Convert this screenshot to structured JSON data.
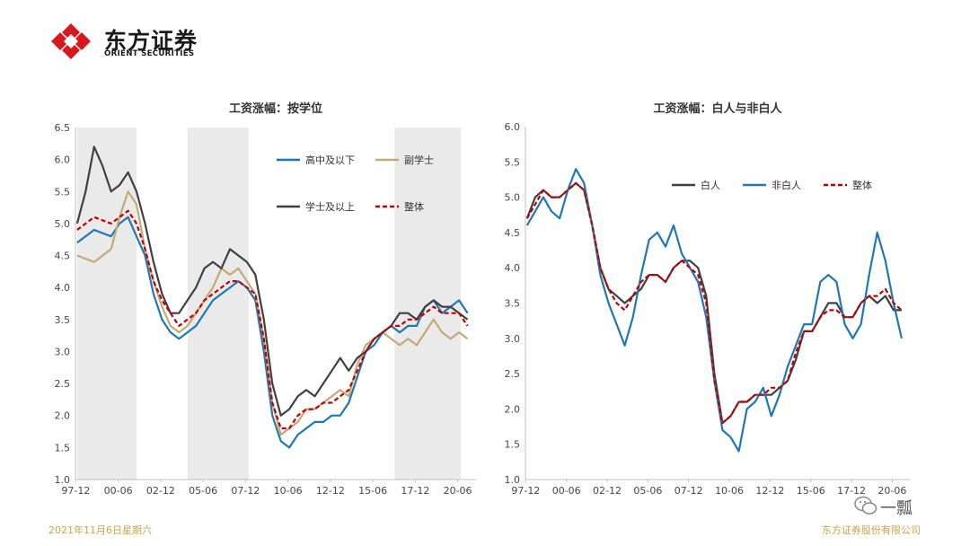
{
  "brand": {
    "name_cn": "东方证券",
    "name_en": "ORIENT SECURITIES",
    "red": "#d7191f"
  },
  "footer": {
    "date": "2021年11月6日星期六",
    "company": "东方证券股份有限公司"
  },
  "watermark": {
    "text": "一瓢"
  },
  "chart_data": [
    {
      "type": "line",
      "title": "工资涨幅：按学位",
      "ylim": [
        1.0,
        6.5
      ],
      "yticks": [
        "1.0",
        "1.5",
        "2.0",
        "2.5",
        "3.0",
        "3.5",
        "4.0",
        "4.5",
        "5.0",
        "5.5",
        "6.0",
        "6.5"
      ],
      "xlim": [
        1997.9,
        2021.5
      ],
      "xtick_labels": [
        "97-12",
        "00-06",
        "02-12",
        "05-06",
        "07-12",
        "10-06",
        "12-12",
        "15-06",
        "17-12",
        "20-06"
      ],
      "xtick_values": [
        1997.92,
        2000.42,
        2002.92,
        2005.42,
        2007.92,
        2010.42,
        2012.92,
        2015.42,
        2017.92,
        2020.42
      ],
      "grid": false,
      "legend_position": "top-right",
      "shaded_periods": [
        [
          1998.0,
          2001.5
        ],
        [
          2004.5,
          2008.1
        ],
        [
          2016.7,
          2020.6
        ]
      ],
      "series": [
        {
          "name": "高中及以下",
          "color": "#1f77b4",
          "dash": false,
          "x": [
            1998,
            1999,
            2000,
            2000.5,
            2001,
            2001.5,
            2002,
            2002.5,
            2003,
            2003.5,
            2004,
            2004.5,
            2005,
            2005.5,
            2006,
            2006.5,
            2007,
            2007.5,
            2008,
            2008.5,
            2009,
            2009.5,
            2010,
            2010.5,
            2011,
            2011.5,
            2012,
            2012.5,
            2013,
            2013.5,
            2014,
            2014.5,
            2015,
            2015.5,
            2016,
            2016.5,
            2017,
            2017.5,
            2018,
            2018.5,
            2019,
            2019.5,
            2020,
            2020.5,
            2021
          ],
          "y": [
            4.7,
            4.9,
            4.8,
            5.0,
            5.1,
            4.8,
            4.5,
            3.9,
            3.5,
            3.3,
            3.2,
            3.3,
            3.4,
            3.6,
            3.8,
            3.9,
            4.0,
            4.1,
            4.0,
            3.8,
            3.0,
            2.0,
            1.6,
            1.5,
            1.7,
            1.8,
            1.9,
            1.9,
            2.0,
            2.0,
            2.2,
            2.6,
            3.0,
            3.1,
            3.3,
            3.4,
            3.3,
            3.4,
            3.4,
            3.7,
            3.8,
            3.6,
            3.7,
            3.8,
            3.6
          ]
        },
        {
          "name": "副学士",
          "color": "#c2aa78",
          "dash": false,
          "x": [
            1998,
            1999,
            2000,
            2000.5,
            2001,
            2001.5,
            2002,
            2002.5,
            2003,
            2003.5,
            2004,
            2004.5,
            2005,
            2005.5,
            2006,
            2006.5,
            2007,
            2007.5,
            2008,
            2008.5,
            2009,
            2009.5,
            2010,
            2010.5,
            2011,
            2011.5,
            2012,
            2012.5,
            2013,
            2013.5,
            2014,
            2014.5,
            2015,
            2015.5,
            2016,
            2016.5,
            2017,
            2017.5,
            2018,
            2018.5,
            2019,
            2019.5,
            2020,
            2020.5,
            2021
          ],
          "y": [
            4.5,
            4.4,
            4.6,
            5.1,
            5.5,
            5.3,
            4.6,
            4.1,
            3.7,
            3.4,
            3.3,
            3.4,
            3.6,
            3.8,
            4.0,
            4.3,
            4.2,
            4.3,
            4.1,
            3.9,
            3.2,
            2.2,
            1.7,
            1.8,
            1.9,
            2.1,
            2.1,
            2.2,
            2.3,
            2.4,
            2.3,
            2.8,
            3.1,
            3.2,
            3.3,
            3.2,
            3.1,
            3.2,
            3.1,
            3.3,
            3.5,
            3.3,
            3.2,
            3.3,
            3.2
          ]
        },
        {
          "name": "学士及以上",
          "color": "#404040",
          "dash": false,
          "x": [
            1998,
            1998.5,
            1999,
            1999.5,
            2000,
            2000.5,
            2001,
            2001.5,
            2002,
            2002.5,
            2003,
            2003.5,
            2004,
            2004.5,
            2005,
            2005.5,
            2006,
            2006.5,
            2007,
            2007.5,
            2008,
            2008.5,
            2009,
            2009.5,
            2010,
            2010.5,
            2011,
            2011.5,
            2012,
            2012.5,
            2013,
            2013.5,
            2014,
            2014.5,
            2015,
            2015.5,
            2016,
            2016.5,
            2017,
            2017.5,
            2018,
            2018.5,
            2019,
            2019.5,
            2020,
            2020.5,
            2021
          ],
          "y": [
            5.0,
            5.5,
            6.2,
            5.9,
            5.5,
            5.6,
            5.8,
            5.5,
            5.0,
            4.4,
            3.9,
            3.6,
            3.6,
            3.8,
            4.0,
            4.3,
            4.4,
            4.3,
            4.6,
            4.5,
            4.4,
            4.2,
            3.5,
            2.5,
            2.0,
            2.1,
            2.3,
            2.4,
            2.3,
            2.5,
            2.7,
            2.9,
            2.7,
            2.9,
            3.0,
            3.2,
            3.3,
            3.4,
            3.6,
            3.6,
            3.5,
            3.7,
            3.8,
            3.7,
            3.7,
            3.6,
            3.5
          ]
        },
        {
          "name": "整体",
          "color": "#c00000",
          "dash": true,
          "x": [
            1998,
            1999,
            2000,
            2000.5,
            2001,
            2001.5,
            2002,
            2002.5,
            2003,
            2003.5,
            2004,
            2004.5,
            2005,
            2005.5,
            2006,
            2006.5,
            2007,
            2007.5,
            2008,
            2008.5,
            2009,
            2009.5,
            2010,
            2010.5,
            2011,
            2011.5,
            2012,
            2012.5,
            2013,
            2013.5,
            2014,
            2014.5,
            2015,
            2015.5,
            2016,
            2016.5,
            2017,
            2017.5,
            2018,
            2018.5,
            2019,
            2019.5,
            2020,
            2020.5,
            2021
          ],
          "y": [
            4.9,
            5.1,
            5.0,
            5.1,
            5.2,
            5.0,
            4.6,
            4.1,
            3.8,
            3.6,
            3.4,
            3.5,
            3.6,
            3.8,
            3.9,
            4.0,
            4.1,
            4.1,
            4.0,
            3.9,
            3.2,
            2.2,
            1.8,
            1.8,
            2.0,
            2.1,
            2.1,
            2.2,
            2.2,
            2.3,
            2.4,
            2.7,
            3.0,
            3.2,
            3.3,
            3.4,
            3.4,
            3.5,
            3.5,
            3.6,
            3.7,
            3.6,
            3.6,
            3.6,
            3.4
          ]
        }
      ]
    },
    {
      "type": "line",
      "title": "工资涨幅：白人与非白人",
      "ylim": [
        1.0,
        6.0
      ],
      "yticks": [
        "1.0",
        "1.5",
        "2.0",
        "2.5",
        "3.0",
        "3.5",
        "4.0",
        "4.5",
        "5.0",
        "5.5",
        "6.0"
      ],
      "xlim": [
        1997.9,
        2021.5
      ],
      "xtick_labels": [
        "97-12",
        "00-06",
        "02-12",
        "05-06",
        "07-12",
        "10-06",
        "12-12",
        "15-06",
        "17-12",
        "20-06"
      ],
      "xtick_values": [
        1997.92,
        2000.42,
        2002.92,
        2005.42,
        2007.92,
        2010.42,
        2012.92,
        2015.42,
        2017.92,
        2020.42
      ],
      "grid": false,
      "legend_position": "top-right",
      "series": [
        {
          "name": "白人",
          "color": "#404040",
          "dash": false,
          "x": [
            1998,
            1998.5,
            1999,
            1999.5,
            2000,
            2000.5,
            2001,
            2001.5,
            2002,
            2002.5,
            2003,
            2003.5,
            2004,
            2004.5,
            2005,
            2005.5,
            2006,
            2006.5,
            2007,
            2007.5,
            2008,
            2008.5,
            2009,
            2009.5,
            2010,
            2010.5,
            2011,
            2011.5,
            2012,
            2012.5,
            2013,
            2013.5,
            2014,
            2014.5,
            2015,
            2015.5,
            2016,
            2016.5,
            2017,
            2017.5,
            2018,
            2018.5,
            2019,
            2019.5,
            2020,
            2020.5,
            2021
          ],
          "y": [
            4.7,
            5.0,
            5.1,
            5.0,
            5.0,
            5.1,
            5.2,
            5.1,
            4.6,
            4.0,
            3.7,
            3.6,
            3.5,
            3.6,
            3.7,
            3.9,
            3.9,
            3.8,
            4.0,
            4.1,
            4.1,
            4.0,
            3.6,
            2.5,
            1.8,
            1.9,
            2.1,
            2.1,
            2.2,
            2.2,
            2.2,
            2.3,
            2.4,
            2.7,
            3.1,
            3.1,
            3.3,
            3.5,
            3.5,
            3.3,
            3.3,
            3.5,
            3.6,
            3.5,
            3.6,
            3.4,
            3.4
          ]
        },
        {
          "name": "非白人",
          "color": "#1f77b4",
          "dash": false,
          "x": [
            1998,
            1998.5,
            1999,
            1999.5,
            2000,
            2000.5,
            2001,
            2001.5,
            2002,
            2002.5,
            2003,
            2003.5,
            2004,
            2004.5,
            2005,
            2005.5,
            2006,
            2006.5,
            2007,
            2007.5,
            2008,
            2008.5,
            2009,
            2009.5,
            2010,
            2010.5,
            2011,
            2011.5,
            2012,
            2012.5,
            2013,
            2013.5,
            2014,
            2014.5,
            2015,
            2015.5,
            2016,
            2016.5,
            2017,
            2017.5,
            2018,
            2018.5,
            2019,
            2019.5,
            2020,
            2020.5,
            2021
          ],
          "y": [
            4.6,
            4.8,
            5.0,
            4.8,
            4.7,
            5.1,
            5.4,
            5.2,
            4.6,
            3.9,
            3.5,
            3.2,
            2.9,
            3.3,
            3.9,
            4.4,
            4.5,
            4.3,
            4.6,
            4.2,
            4.0,
            3.8,
            3.3,
            2.4,
            1.7,
            1.6,
            1.4,
            2.0,
            2.1,
            2.3,
            1.9,
            2.2,
            2.6,
            2.9,
            3.2,
            3.2,
            3.8,
            3.9,
            3.8,
            3.2,
            3.0,
            3.2,
            3.9,
            4.5,
            4.1,
            3.5,
            3.0
          ]
        },
        {
          "name": "整体",
          "color": "#c00000",
          "dash": true,
          "x": [
            1998,
            1998.5,
            1999,
            1999.5,
            2000,
            2000.5,
            2001,
            2001.5,
            2002,
            2002.5,
            2003,
            2003.5,
            2004,
            2004.5,
            2005,
            2005.5,
            2006,
            2006.5,
            2007,
            2007.5,
            2008,
            2008.5,
            2009,
            2009.5,
            2010,
            2010.5,
            2011,
            2011.5,
            2012,
            2012.5,
            2013,
            2013.5,
            2014,
            2014.5,
            2015,
            2015.5,
            2016,
            2016.5,
            2017,
            2017.5,
            2018,
            2018.5,
            2019,
            2019.5,
            2020,
            2020.5,
            2021
          ],
          "y": [
            4.7,
            4.9,
            5.1,
            5.0,
            5.0,
            5.1,
            5.2,
            5.1,
            4.6,
            4.0,
            3.7,
            3.5,
            3.4,
            3.6,
            3.8,
            3.9,
            3.9,
            3.8,
            4.0,
            4.1,
            4.0,
            3.9,
            3.5,
            2.4,
            1.8,
            1.9,
            2.1,
            2.1,
            2.2,
            2.2,
            2.3,
            2.3,
            2.4,
            2.8,
            3.1,
            3.1,
            3.3,
            3.4,
            3.4,
            3.3,
            3.3,
            3.5,
            3.6,
            3.6,
            3.7,
            3.5,
            3.4
          ]
        }
      ]
    }
  ]
}
